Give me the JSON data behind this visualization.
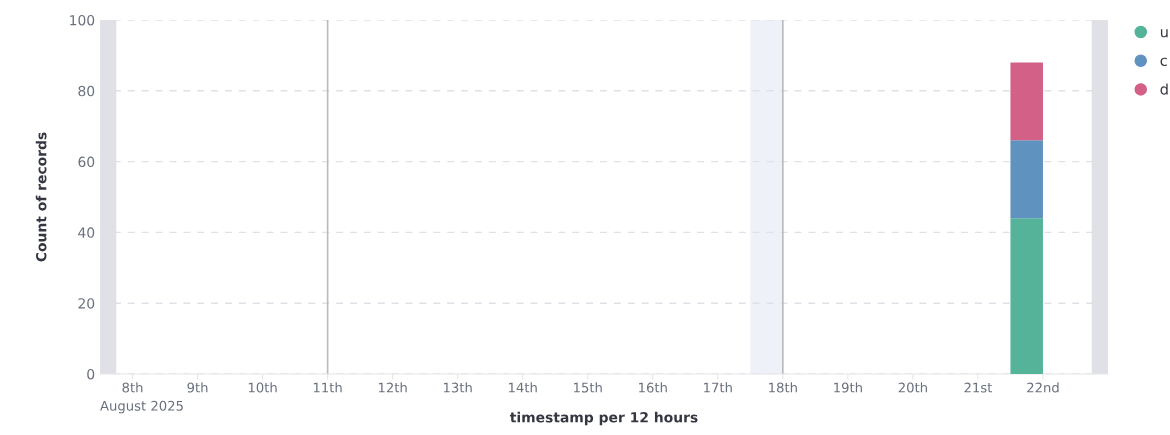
{
  "chart_data": {
    "type": "bar",
    "stacked": true,
    "xlabel": "timestamp per 12 hours",
    "ylabel": "Count of records",
    "x": [
      "2025-08-21T18:00"
    ],
    "series": [
      {
        "name": "u",
        "color": "#54b399",
        "values": [
          44
        ]
      },
      {
        "name": "c",
        "color": "#6092c0",
        "values": [
          22
        ]
      },
      {
        "name": "d",
        "color": "#d36086",
        "values": [
          22
        ]
      }
    ],
    "xlim": [
      "2025-08-07T12:00",
      "2025-08-23T00:00"
    ],
    "xticks": [
      {
        "value": "2025-08-08",
        "label": "8th"
      },
      {
        "value": "2025-08-09",
        "label": "9th"
      },
      {
        "value": "2025-08-10",
        "label": "10th"
      },
      {
        "value": "2025-08-11",
        "label": "11th"
      },
      {
        "value": "2025-08-12",
        "label": "12th"
      },
      {
        "value": "2025-08-13",
        "label": "13th"
      },
      {
        "value": "2025-08-14",
        "label": "14th"
      },
      {
        "value": "2025-08-15",
        "label": "15th"
      },
      {
        "value": "2025-08-16",
        "label": "16th"
      },
      {
        "value": "2025-08-17",
        "label": "17th"
      },
      {
        "value": "2025-08-18",
        "label": "18th"
      },
      {
        "value": "2025-08-19",
        "label": "19th"
      },
      {
        "value": "2025-08-20",
        "label": "20th"
      },
      {
        "value": "2025-08-21",
        "label": "21st"
      },
      {
        "value": "2025-08-22",
        "label": "22nd"
      }
    ],
    "ylim": [
      0,
      100
    ],
    "yticks": [
      0,
      20,
      40,
      60,
      80,
      100
    ],
    "grid": "y",
    "legend": "top right",
    "annotations": [
      "August 2025"
    ],
    "ref_lines": [
      {
        "axis": "x",
        "value": "2025-08-11",
        "color": "#bbbbbb"
      },
      {
        "axis": "x",
        "value": "2025-08-18",
        "color": "#bbbbbb"
      }
    ],
    "bands": [
      {
        "axis": "x",
        "from": "2025-08-07T12:00",
        "to": "2025-08-07T18:00",
        "color": "#e0e1e6"
      },
      {
        "axis": "x",
        "from": "2025-08-17T12:00",
        "to": "2025-08-18T00:00",
        "color": "#eef1f8"
      },
      {
        "axis": "x",
        "from": "2025-08-22T18:00",
        "to": "2025-08-23T00:00",
        "color": "#e0e1e6"
      }
    ]
  }
}
